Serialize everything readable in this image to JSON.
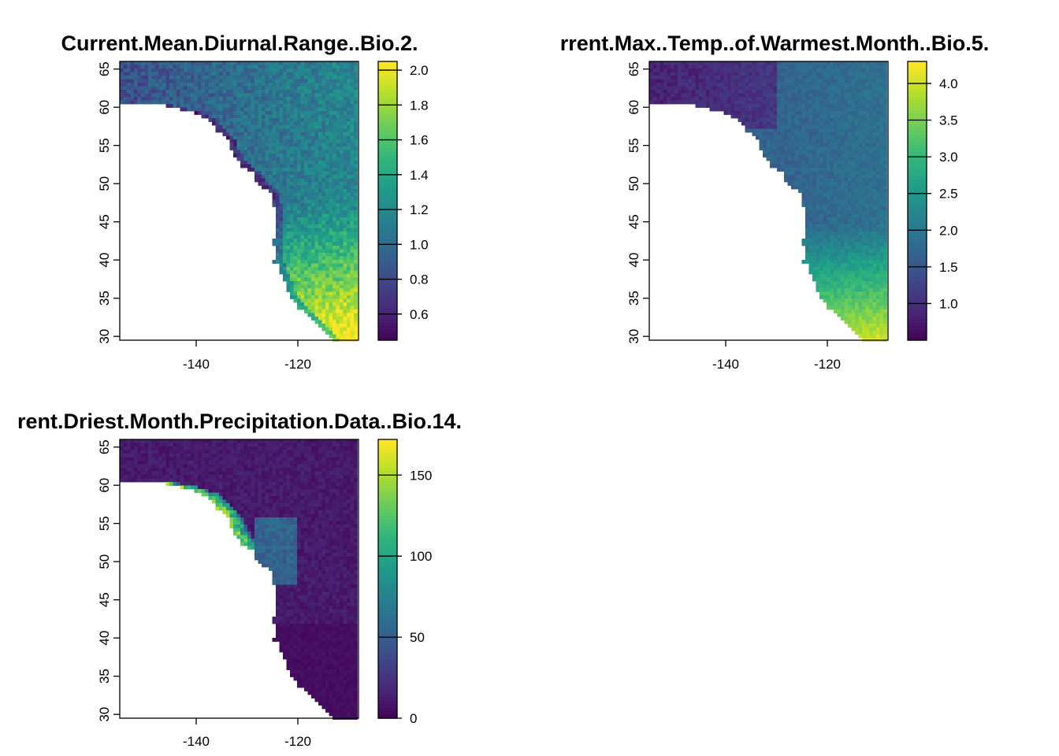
{
  "panels": [
    {
      "title": "Current.Mean.Diurnal.Range..Bio.2.",
      "variable": "diurnal_range",
      "x_ticks": [
        "-140",
        "-120"
      ],
      "y_ticks": [
        "30",
        "35",
        "40",
        "45",
        "50",
        "55",
        "60",
        "65"
      ],
      "legend_ticks": [
        "0.6",
        "0.8",
        "1.0",
        "1.2",
        "1.4",
        "1.6",
        "1.8",
        "2.0"
      ],
      "value_range": [
        0.45,
        2.05
      ]
    },
    {
      "title": "rrent.Max..Temp..of.Warmest.Month..Bio.5.",
      "variable": "max_temp_warmest",
      "x_ticks": [
        "-140",
        "-120"
      ],
      "y_ticks": [
        "30",
        "35",
        "40",
        "45",
        "50",
        "55",
        "60",
        "65"
      ],
      "legend_ticks": [
        "1.0",
        "1.5",
        "2.0",
        "2.5",
        "3.0",
        "3.5",
        "4.0"
      ],
      "value_range": [
        0.5,
        4.3
      ]
    },
    {
      "title": "rent.Driest.Month.Precipitation.Data..Bio.14.",
      "variable": "driest_month_precip",
      "x_ticks": [
        "-140",
        "-120"
      ],
      "y_ticks": [
        "30",
        "35",
        "40",
        "45",
        "50",
        "55",
        "60",
        "65"
      ],
      "legend_ticks": [
        "0",
        "50",
        "100",
        "150"
      ],
      "value_range": [
        0,
        172
      ]
    }
  ],
  "map_extent": {
    "lon": [
      -155,
      -108
    ],
    "lat": [
      29.5,
      66
    ]
  },
  "colormap": [
    "#440154",
    "#482878",
    "#3e4989",
    "#31688e",
    "#26828e",
    "#1f9e89",
    "#35b779",
    "#6ece58",
    "#b5de2b",
    "#fde725"
  ]
}
